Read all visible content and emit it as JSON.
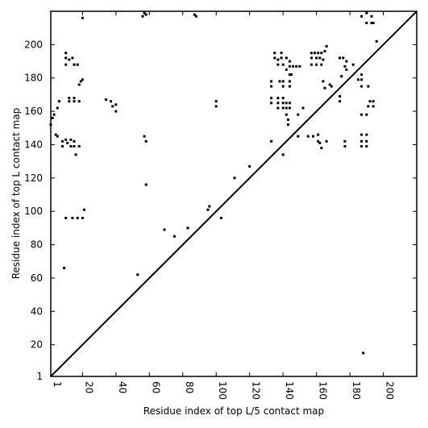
{
  "chart_data": {
    "type": "scatter",
    "title": "",
    "xlabel": "Residue index of top L/5 contact map",
    "ylabel": "Residue index of top L contact map",
    "xlim": [
      1,
      220
    ],
    "ylim": [
      1,
      220
    ],
    "grid": false,
    "x_ticks": [
      1,
      20,
      40,
      60,
      80,
      100,
      120,
      140,
      160,
      180,
      200
    ],
    "y_ticks": [
      1,
      20,
      40,
      60,
      80,
      100,
      120,
      140,
      160,
      180,
      200
    ],
    "diagonal": {
      "from": [
        1,
        1
      ],
      "to": [
        220,
        220
      ]
    },
    "marker_color": "#000000",
    "points": [
      [
        1,
        152
      ],
      [
        2,
        156
      ],
      [
        3,
        158
      ],
      [
        4,
        146
      ],
      [
        5,
        145
      ],
      [
        5,
        162
      ],
      [
        6,
        166
      ],
      [
        8,
        142
      ],
      [
        8,
        139
      ],
      [
        10,
        143
      ],
      [
        11,
        141
      ],
      [
        13,
        143
      ],
      [
        13,
        139
      ],
      [
        15,
        142
      ],
      [
        15,
        139
      ],
      [
        16,
        134
      ],
      [
        18,
        139
      ],
      [
        10,
        192
      ],
      [
        10,
        188
      ],
      [
        10,
        195
      ],
      [
        12,
        191
      ],
      [
        14,
        192
      ],
      [
        15,
        188
      ],
      [
        17,
        188
      ],
      [
        18,
        176
      ],
      [
        19,
        178
      ],
      [
        20,
        179
      ],
      [
        12,
        168
      ],
      [
        12,
        166
      ],
      [
        15,
        168
      ],
      [
        15,
        166
      ],
      [
        18,
        166
      ],
      [
        9,
        66
      ],
      [
        10,
        96
      ],
      [
        14,
        96
      ],
      [
        17,
        96
      ],
      [
        20,
        96
      ],
      [
        21,
        101
      ],
      [
        34,
        167
      ],
      [
        37,
        166
      ],
      [
        38,
        163
      ],
      [
        40,
        160
      ],
      [
        40,
        164
      ],
      [
        57,
        145
      ],
      [
        58,
        142
      ],
      [
        58,
        116
      ],
      [
        53,
        62
      ],
      [
        69,
        89
      ],
      [
        75,
        85
      ],
      [
        83,
        90
      ],
      [
        95,
        101
      ],
      [
        96,
        103
      ],
      [
        103,
        96
      ],
      [
        100,
        163
      ],
      [
        100,
        166
      ],
      [
        111,
        120
      ],
      [
        120,
        127
      ],
      [
        56,
        217
      ],
      [
        57,
        219
      ],
      [
        58,
        218
      ],
      [
        87,
        218
      ],
      [
        88,
        217
      ],
      [
        20,
        216
      ],
      [
        133,
        142
      ],
      [
        133,
        165
      ],
      [
        133,
        168
      ],
      [
        133,
        175
      ],
      [
        133,
        178
      ],
      [
        135,
        195
      ],
      [
        135,
        192
      ],
      [
        137,
        191
      ],
      [
        137,
        188
      ],
      [
        137,
        168
      ],
      [
        137,
        165
      ],
      [
        137,
        162
      ],
      [
        138,
        178
      ],
      [
        139,
        195
      ],
      [
        139,
        192
      ],
      [
        140,
        188
      ],
      [
        140,
        178
      ],
      [
        140,
        175
      ],
      [
        140,
        168
      ],
      [
        140,
        165
      ],
      [
        140,
        162
      ],
      [
        140,
        134
      ],
      [
        142,
        192
      ],
      [
        142,
        185
      ],
      [
        142,
        165
      ],
      [
        142,
        162
      ],
      [
        142,
        158
      ],
      [
        143,
        152
      ],
      [
        143,
        155
      ],
      [
        144,
        190
      ],
      [
        144,
        187
      ],
      [
        144,
        182
      ],
      [
        144,
        178
      ],
      [
        144,
        175
      ],
      [
        144,
        165
      ],
      [
        144,
        162
      ],
      [
        145,
        182
      ],
      [
        146,
        187
      ],
      [
        148,
        187
      ],
      [
        149,
        158
      ],
      [
        149,
        145
      ],
      [
        150,
        187
      ],
      [
        152,
        162
      ],
      [
        155,
        145
      ],
      [
        157,
        195
      ],
      [
        157,
        192
      ],
      [
        157,
        188
      ],
      [
        158,
        145
      ],
      [
        159,
        195
      ],
      [
        160,
        192
      ],
      [
        160,
        188
      ],
      [
        161,
        195
      ],
      [
        161,
        142
      ],
      [
        161,
        146
      ],
      [
        162,
        192
      ],
      [
        162,
        141
      ],
      [
        163,
        195
      ],
      [
        163,
        188
      ],
      [
        163,
        138
      ],
      [
        164,
        191
      ],
      [
        164,
        178
      ],
      [
        165,
        196
      ],
      [
        165,
        174
      ],
      [
        166,
        199
      ],
      [
        166,
        142
      ],
      [
        168,
        176
      ],
      [
        169,
        175
      ],
      [
        174,
        169
      ],
      [
        174,
        166
      ],
      [
        174,
        192
      ],
      [
        175,
        181
      ],
      [
        176,
        192
      ],
      [
        177,
        187
      ],
      [
        177,
        142
      ],
      [
        177,
        139
      ],
      [
        178,
        190
      ],
      [
        178,
        185
      ],
      [
        182,
        188
      ],
      [
        185,
        179
      ],
      [
        187,
        182
      ],
      [
        187,
        179
      ],
      [
        187,
        175
      ],
      [
        187,
        158
      ],
      [
        187,
        146
      ],
      [
        187,
        142
      ],
      [
        187,
        139
      ],
      [
        187,
        217
      ],
      [
        190,
        219
      ],
      [
        190,
        213
      ],
      [
        190,
        146
      ],
      [
        190,
        142
      ],
      [
        190,
        139
      ],
      [
        190,
        158
      ],
      [
        191,
        163
      ],
      [
        191,
        175
      ],
      [
        192,
        166
      ],
      [
        193,
        217
      ],
      [
        193,
        213
      ],
      [
        194,
        213
      ],
      [
        194,
        163
      ],
      [
        194,
        166
      ],
      [
        196,
        202
      ],
      [
        188,
        15
      ]
    ]
  }
}
